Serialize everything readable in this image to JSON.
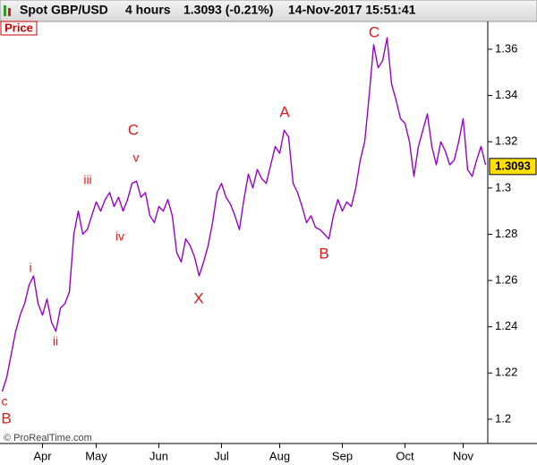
{
  "header": {
    "instrument": "Spot GBP/USD",
    "period": "4 hours",
    "quote": "1.3093 (-0.21%)",
    "timestamp": "14-Nov-2017 15:51:41"
  },
  "chart_data": {
    "type": "line",
    "panel_label": "Price",
    "footer": "© ProRealTime.com",
    "categories": [
      null,
      null,
      null,
      null,
      null,
      null,
      null,
      null,
      null,
      "Apr",
      null,
      null,
      null,
      null,
      null,
      null,
      null,
      null,
      null,
      null,
      null,
      "May",
      null,
      null,
      null,
      null,
      null,
      null,
      null,
      null,
      null,
      null,
      null,
      null,
      null,
      "Jun",
      null,
      null,
      null,
      null,
      null,
      null,
      null,
      null,
      null,
      null,
      null,
      null,
      null,
      "Jul",
      null,
      null,
      null,
      null,
      null,
      null,
      null,
      null,
      null,
      null,
      null,
      null,
      "Aug",
      null,
      null,
      null,
      null,
      null,
      null,
      null,
      null,
      null,
      null,
      null,
      null,
      null,
      "Sep",
      null,
      null,
      null,
      null,
      null,
      null,
      null,
      null,
      null,
      null,
      null,
      null,
      null,
      "Oct",
      null,
      null,
      null,
      null,
      null,
      null,
      null,
      null,
      null,
      null,
      null,
      null,
      "Nov",
      null,
      null,
      null,
      null,
      null
    ],
    "series": [
      {
        "name": "Spot GBP/USD",
        "color": "#9a00cc",
        "values": [
          1.212,
          1.218,
          1.228,
          1.238,
          1.245,
          1.25,
          1.258,
          1.262,
          1.25,
          1.245,
          1.252,
          1.242,
          1.238,
          1.248,
          1.25,
          1.255,
          1.28,
          1.29,
          1.28,
          1.282,
          1.288,
          1.294,
          1.29,
          1.295,
          1.298,
          1.292,
          1.296,
          1.29,
          1.295,
          1.302,
          1.303,
          1.296,
          1.298,
          1.288,
          1.285,
          1.292,
          1.29,
          1.295,
          1.288,
          1.272,
          1.268,
          1.278,
          1.275,
          1.27,
          1.262,
          1.268,
          1.275,
          1.285,
          1.298,
          1.302,
          1.296,
          1.293,
          1.288,
          1.282,
          1.295,
          1.306,
          1.3,
          1.308,
          1.304,
          1.302,
          1.31,
          1.318,
          1.315,
          1.325,
          1.322,
          1.302,
          1.298,
          1.292,
          1.285,
          1.288,
          1.283,
          1.282,
          1.28,
          1.278,
          1.288,
          1.295,
          1.29,
          1.294,
          1.292,
          1.3,
          1.312,
          1.32,
          1.34,
          1.362,
          1.352,
          1.355,
          1.365,
          1.345,
          1.338,
          1.33,
          1.328,
          1.32,
          1.305,
          1.318,
          1.325,
          1.332,
          1.318,
          1.31,
          1.32,
          1.316,
          1.31,
          1.312,
          1.32,
          1.33,
          1.308,
          1.305,
          1.312,
          1.318,
          1.31
        ]
      }
    ],
    "last_value": 1.3093,
    "ylim": [
      1.1895,
      1.372
    ],
    "yticks": [
      1.2,
      1.22,
      1.24,
      1.26,
      1.28,
      1.3,
      1.32,
      1.34,
      1.36
    ],
    "annotations": [
      "c",
      "B",
      "i",
      "ii",
      "iii",
      "iv",
      "v",
      "C",
      "X",
      "A",
      "B",
      "C"
    ]
  }
}
